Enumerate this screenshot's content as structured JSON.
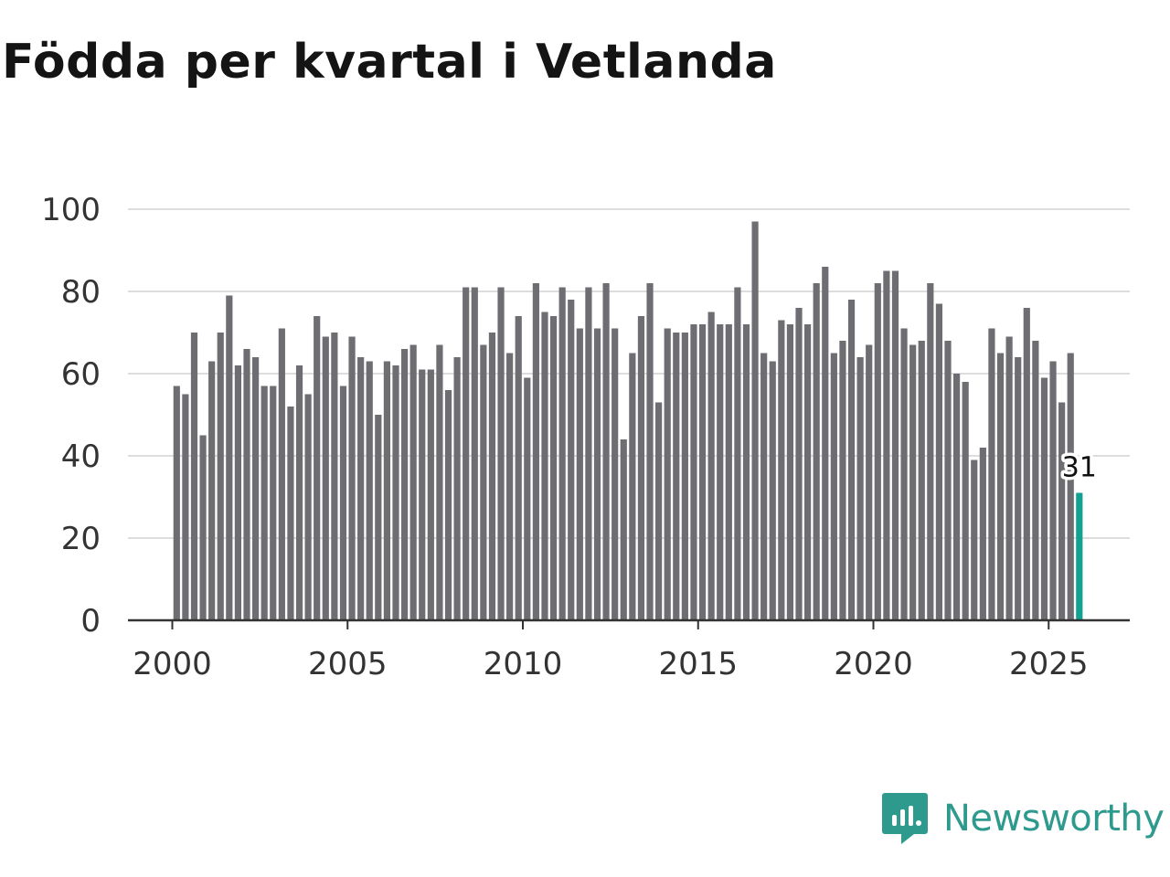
{
  "title": "Födda per kvartal i Vetlanda",
  "brand": {
    "name": "Newsworthy",
    "icon": "newsworthy-logo-icon",
    "color": "#2e9a8e"
  },
  "colors": {
    "bar": "#6e6d72",
    "highlight": "#12a193",
    "grid": "#dddddd",
    "axis": "#333333"
  },
  "chart_data": {
    "type": "bar",
    "title": "Födda per kvartal i Vetlanda",
    "xlabel": "",
    "ylabel": "",
    "ylim": [
      0,
      100
    ],
    "yticks": [
      0,
      20,
      40,
      60,
      80,
      100
    ],
    "xlim": [
      1999.5,
      2026.25
    ],
    "xticks": [
      2000,
      2005,
      2010,
      2015,
      2020,
      2025
    ],
    "grid": true,
    "start": "2000 Q1",
    "highlight_label": "31",
    "values": [
      57,
      55,
      70,
      45,
      63,
      70,
      79,
      62,
      66,
      64,
      57,
      57,
      71,
      52,
      62,
      55,
      74,
      69,
      70,
      57,
      69,
      64,
      63,
      50,
      63,
      62,
      66,
      67,
      61,
      61,
      67,
      56,
      64,
      81,
      81,
      67,
      70,
      81,
      65,
      74,
      59,
      82,
      75,
      74,
      81,
      78,
      71,
      81,
      71,
      82,
      71,
      44,
      65,
      74,
      82,
      53,
      71,
      70,
      70,
      72,
      72,
      75,
      72,
      72,
      81,
      72,
      97,
      65,
      63,
      73,
      72,
      76,
      72,
      82,
      86,
      65,
      68,
      78,
      64,
      67,
      82,
      85,
      85,
      71,
      67,
      68,
      82,
      77,
      68,
      60,
      58,
      39,
      42,
      71,
      65,
      69,
      64,
      76,
      68,
      59,
      63,
      53,
      65,
      31
    ]
  }
}
